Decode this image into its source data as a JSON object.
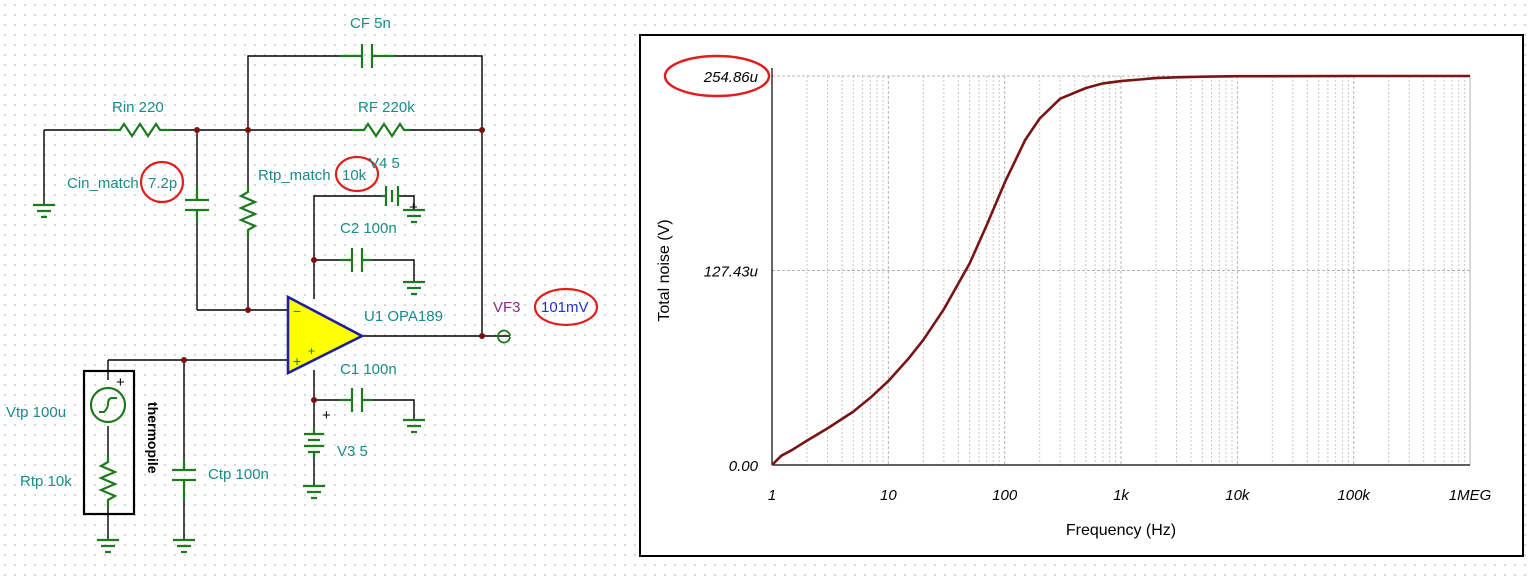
{
  "schematic": {
    "labels": {
      "cf": "CF 5n",
      "rin": "Rin 220",
      "rf": "RF 220k",
      "cin_name": "Cin_match",
      "cin_value": "7.2p",
      "rtp_match_name": "Rtp_match",
      "rtp_match_value": "10k",
      "v4": "V4 5",
      "c2": "C2 100n",
      "u1": "U1 OPA189",
      "vf3": "VF3",
      "vf3_value": "101mV",
      "c1": "C1 100n",
      "v3": "V3 5",
      "vtp": "Vtp 100u",
      "rtp": "Rtp 10k",
      "thermopile": "thermopile",
      "ctp": "Ctp 100n"
    },
    "colors": {
      "component": "#1f7a1f",
      "label": "#1a8a8a",
      "highlight": "#e01e1e",
      "opamp_fill": "#ffff00",
      "probe": "#8a2b8a"
    }
  },
  "chart_data": {
    "type": "line",
    "xlabel": "Frequency (Hz)",
    "ylabel": "Total noise (V)",
    "x_scale": "log",
    "xlim": [
      1,
      1000000
    ],
    "x_ticks": [
      "1",
      "10",
      "100",
      "1k",
      "10k",
      "100k",
      "1MEG"
    ],
    "y_ticks": [
      "0.00",
      "127.43u",
      "254.86u"
    ],
    "ylim": [
      0,
      254.86
    ],
    "y_unit": "uV",
    "highlighted_tick": "254.86u",
    "line_color": "#7a1414",
    "grid": true,
    "series": [
      {
        "x": [
          1,
          1.2,
          1.5,
          2,
          3,
          5,
          7,
          10,
          15,
          20,
          30,
          50,
          70,
          100,
          150,
          200,
          300,
          500,
          700,
          1000,
          2000,
          3000,
          5000,
          10000,
          100000,
          1000000
        ],
        "y": [
          0,
          6,
          10,
          16,
          24,
          35,
          44,
          55,
          70,
          82,
          102,
          132,
          157,
          185,
          213,
          227,
          240,
          247,
          250,
          251.5,
          253.5,
          254,
          254.4,
          254.7,
          254.85,
          254.86
        ]
      }
    ]
  }
}
